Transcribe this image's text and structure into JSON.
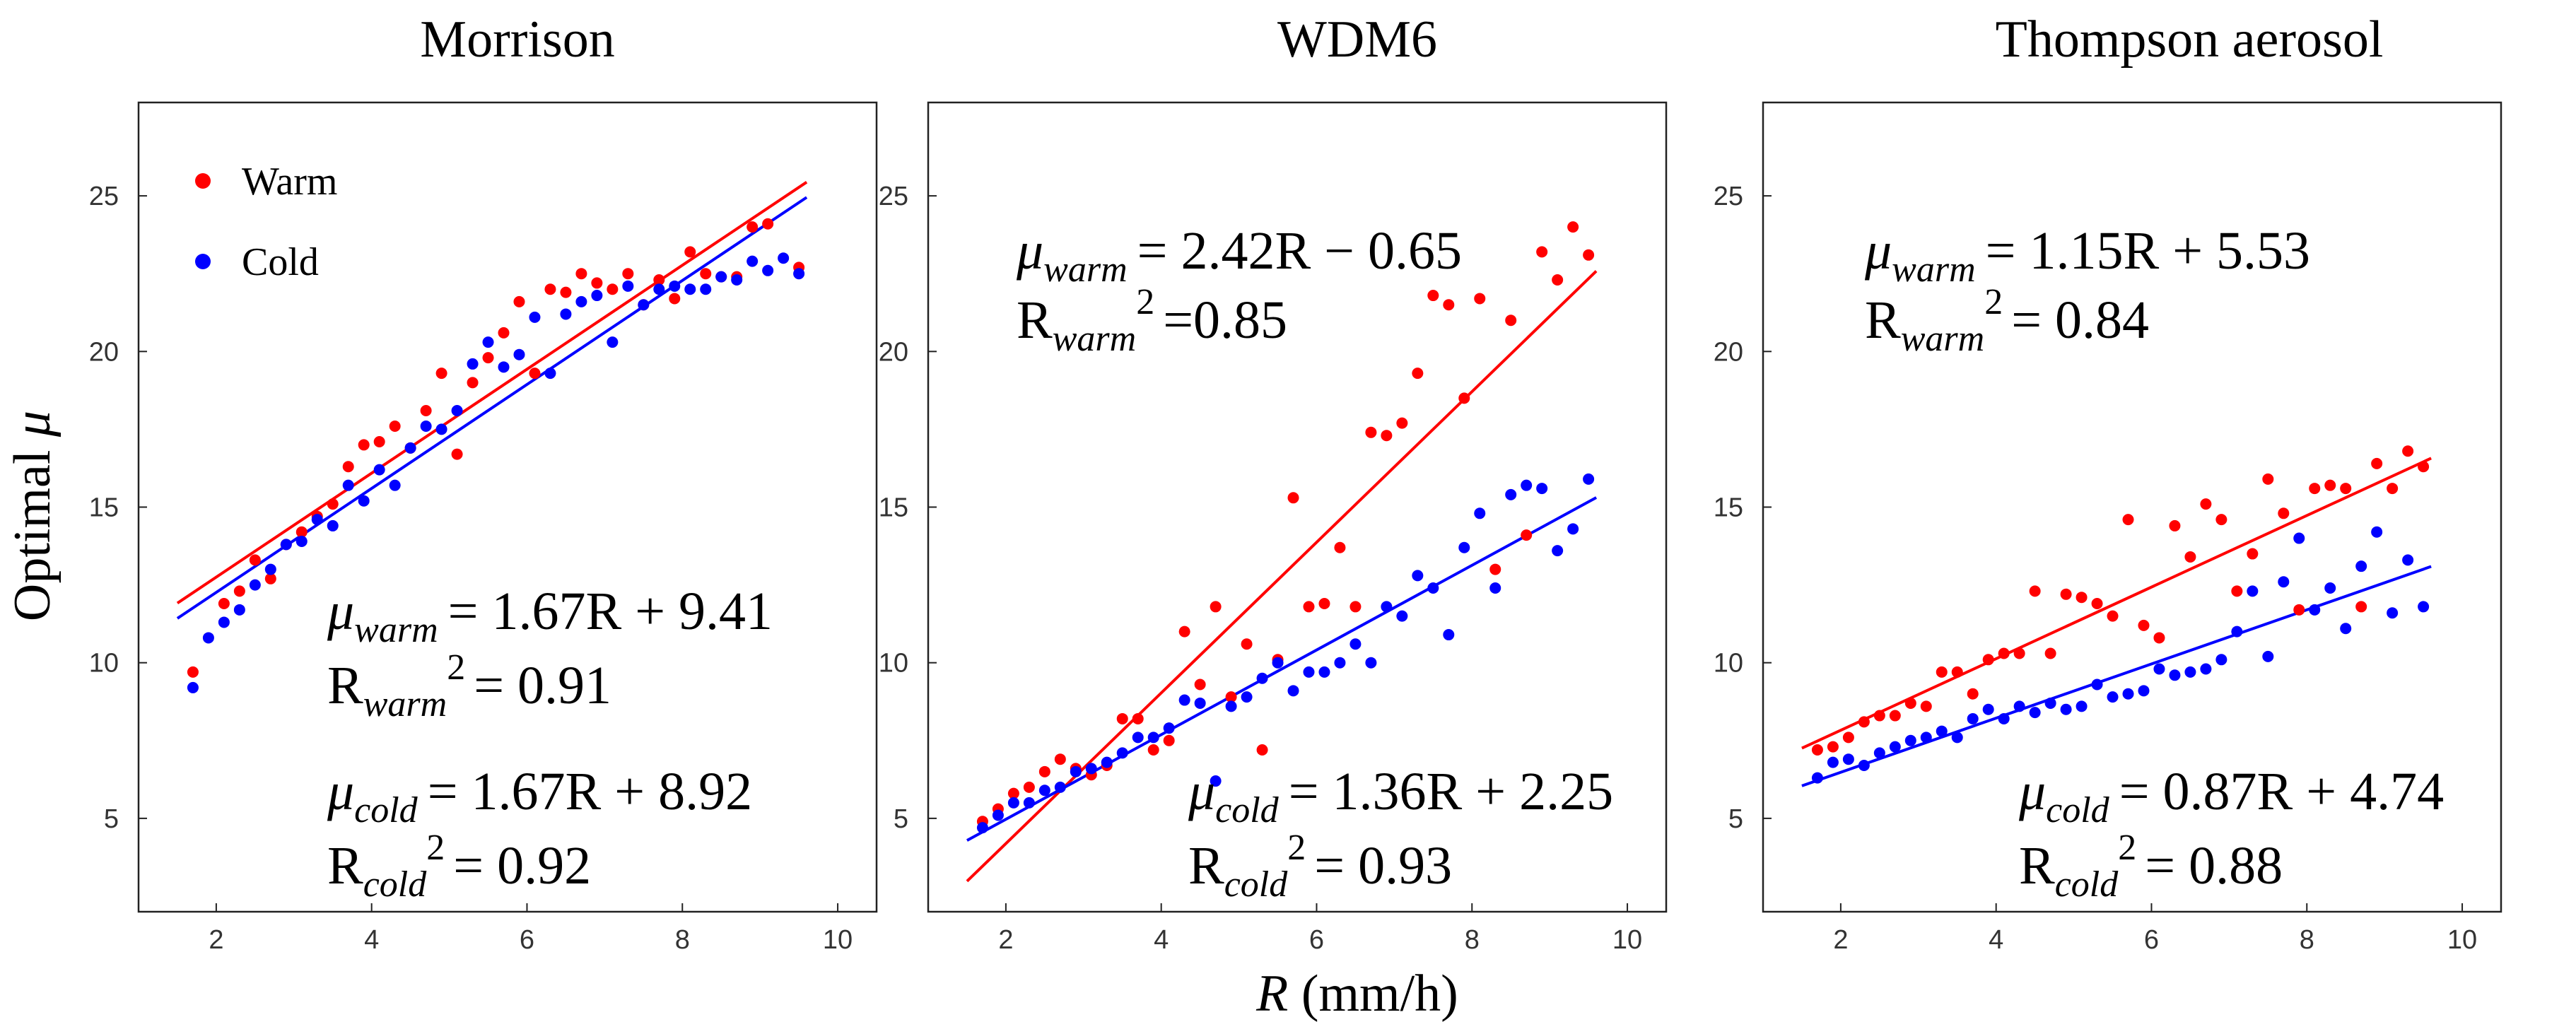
{
  "figure": {
    "ylabel_text": "Optimal",
    "ylabel_symbol": "μ",
    "xlabel_symbol": "R",
    "xlabel_unit": " (mm/h)"
  },
  "colors": {
    "warm": "#ff0000",
    "cold": "#0000ff"
  },
  "chart_data": [
    {
      "type": "scatter",
      "title": "Morrison",
      "xlabel": "R (mm/h)",
      "ylabel": "Optimal μ",
      "xlim": [
        1.0,
        10.5
      ],
      "ylim": [
        2.0,
        28.0
      ],
      "xticks": [
        2,
        4,
        6,
        8,
        10
      ],
      "yticks": [
        5,
        10,
        15,
        20,
        25
      ],
      "legend": {
        "position": "top-left",
        "entries": [
          {
            "label": "Warm",
            "color": "#ff0000"
          },
          {
            "label": "Cold",
            "color": "#0000ff"
          }
        ]
      },
      "series": [
        {
          "name": "Warm",
          "color": "#ff0000",
          "x": [
            1.7,
            2.1,
            2.3,
            2.5,
            2.7,
            2.9,
            3.1,
            3.3,
            3.5,
            3.7,
            3.9,
            4.1,
            4.3,
            4.5,
            4.7,
            4.9,
            5.1,
            5.3,
            5.5,
            5.7,
            5.9,
            6.1,
            6.3,
            6.5,
            6.7,
            6.9,
            7.1,
            7.3,
            7.5,
            7.7,
            7.9,
            8.1,
            8.3,
            8.5,
            8.7,
            8.9,
            9.1,
            9.5
          ],
          "y": [
            9.7,
            11.9,
            12.3,
            13.3,
            12.7,
            13.8,
            14.2,
            14.7,
            15.1,
            16.3,
            17.0,
            17.1,
            17.6,
            16.9,
            18.1,
            19.3,
            16.7,
            19.0,
            19.8,
            20.6,
            21.6,
            19.3,
            22.0,
            21.9,
            22.5,
            22.2,
            22.0,
            22.5,
            21.5,
            22.3,
            21.7,
            23.2,
            22.5,
            22.4,
            22.4,
            24.0,
            24.1,
            22.7
          ],
          "fit": {
            "slope": 1.67,
            "intercept": 9.41,
            "x_range": [
              1.5,
              9.6
            ]
          },
          "equation": {
            "mu": "μ",
            "sub": "warm",
            "rhs": "= 1.67R + 9.41",
            "r": "R",
            "r_sub": "warm",
            "r_sup": "2",
            "r_rhs": "= 0.91"
          }
        },
        {
          "name": "Cold",
          "color": "#0000ff",
          "x": [
            1.7,
            1.9,
            2.1,
            2.3,
            2.5,
            2.7,
            2.9,
            3.1,
            3.3,
            3.5,
            3.7,
            3.9,
            4.1,
            4.3,
            4.5,
            4.7,
            4.9,
            5.1,
            5.3,
            5.5,
            5.7,
            5.9,
            6.1,
            6.3,
            6.5,
            6.7,
            6.9,
            7.1,
            7.3,
            7.5,
            7.7,
            7.9,
            8.1,
            8.3,
            8.5,
            8.7,
            8.9,
            9.1,
            9.3,
            9.5
          ],
          "y": [
            9.2,
            10.8,
            11.3,
            11.7,
            12.5,
            13.0,
            13.8,
            13.9,
            14.6,
            14.4,
            15.7,
            15.2,
            16.2,
            15.7,
            16.9,
            17.6,
            17.5,
            18.1,
            19.6,
            20.3,
            19.5,
            19.9,
            21.1,
            19.3,
            21.2,
            21.6,
            21.8,
            20.3,
            22.1,
            21.5,
            22.0,
            22.1,
            22.0,
            22.0,
            22.4,
            22.3,
            22.9,
            22.6,
            23.0,
            22.5
          ],
          "fit": {
            "slope": 1.67,
            "intercept": 8.92,
            "x_range": [
              1.5,
              9.6
            ]
          },
          "equation": {
            "mu": "μ",
            "sub": "cold",
            "rhs": "= 1.67R + 8.92",
            "r": "R",
            "r_sub": "cold",
            "r_sup": "2",
            "r_rhs": "= 0.92"
          }
        }
      ]
    },
    {
      "type": "scatter",
      "title": "WDM6",
      "xlabel": "R (mm/h)",
      "ylabel": "",
      "xlim": [
        1.0,
        10.5
      ],
      "ylim": [
        2.0,
        28.0
      ],
      "xticks": [
        2,
        4,
        6,
        8,
        10
      ],
      "yticks": [
        5,
        10,
        15,
        20,
        25
      ],
      "series": [
        {
          "name": "Warm",
          "color": "#ff0000",
          "x": [
            1.7,
            1.9,
            2.1,
            2.3,
            2.5,
            2.7,
            2.9,
            3.1,
            3.3,
            3.5,
            3.7,
            3.9,
            4.1,
            4.3,
            4.5,
            4.7,
            4.9,
            5.1,
            5.3,
            5.5,
            5.7,
            5.9,
            6.1,
            6.3,
            6.5,
            6.7,
            6.9,
            7.1,
            7.3,
            7.5,
            7.7,
            7.9,
            8.1,
            8.3,
            8.5,
            8.7,
            8.9,
            9.1,
            9.3,
            9.5
          ],
          "y": [
            4.9,
            5.3,
            5.8,
            6.0,
            6.5,
            6.9,
            6.6,
            6.4,
            6.7,
            8.2,
            8.2,
            7.2,
            7.5,
            11.0,
            9.3,
            11.8,
            8.9,
            10.6,
            7.2,
            10.1,
            15.3,
            11.8,
            11.9,
            13.7,
            11.8,
            17.4,
            17.3,
            17.7,
            19.3,
            21.8,
            21.5,
            18.5,
            21.7,
            13.0,
            21.0,
            14.1,
            23.2,
            22.3,
            24.0,
            23.1
          ],
          "fit": {
            "slope": 2.42,
            "intercept": -0.65,
            "x_range": [
              1.5,
              9.6
            ]
          },
          "equation": {
            "mu": "μ",
            "sub": "warm",
            "rhs": "= 2.42R − 0.65",
            "r": "R",
            "r_sub": "warm",
            "r_sup": "2",
            "r_rhs": "=0.85"
          }
        },
        {
          "name": "Cold",
          "color": "#0000ff",
          "x": [
            1.7,
            1.9,
            2.1,
            2.3,
            2.5,
            2.7,
            2.9,
            3.1,
            3.3,
            3.5,
            3.7,
            3.9,
            4.1,
            4.3,
            4.5,
            4.7,
            4.9,
            5.1,
            5.3,
            5.5,
            5.7,
            5.9,
            6.1,
            6.3,
            6.5,
            6.7,
            6.9,
            7.1,
            7.3,
            7.5,
            7.7,
            7.9,
            8.1,
            8.3,
            8.5,
            8.7,
            8.9,
            9.1,
            9.3,
            9.5
          ],
          "y": [
            4.7,
            5.1,
            5.5,
            5.5,
            5.9,
            6.0,
            6.5,
            6.6,
            6.8,
            7.1,
            7.6,
            7.6,
            7.9,
            8.8,
            8.7,
            6.2,
            8.6,
            8.9,
            9.5,
            10.0,
            9.1,
            9.7,
            9.7,
            10.0,
            10.6,
            10.0,
            11.8,
            11.5,
            12.8,
            12.4,
            10.9,
            13.7,
            14.8,
            12.4,
            15.4,
            15.7,
            15.6,
            13.6,
            14.3,
            15.9
          ],
          "fit": {
            "slope": 1.36,
            "intercept": 2.25,
            "x_range": [
              1.5,
              9.6
            ]
          },
          "equation": {
            "mu": "μ",
            "sub": "cold",
            "rhs": "= 1.36R + 2.25",
            "r": "R",
            "r_sub": "cold",
            "r_sup": "2",
            "r_rhs": "= 0.93"
          }
        }
      ]
    },
    {
      "type": "scatter",
      "title": "Thompson aerosol",
      "xlabel": "R (mm/h)",
      "ylabel": "",
      "xlim": [
        1.0,
        10.5
      ],
      "ylim": [
        2.0,
        28.0
      ],
      "xticks": [
        2,
        4,
        6,
        8,
        10
      ],
      "yticks": [
        5,
        10,
        15,
        20,
        25
      ],
      "series": [
        {
          "name": "Warm",
          "color": "#ff0000",
          "x": [
            1.7,
            1.9,
            2.1,
            2.3,
            2.5,
            2.7,
            2.9,
            3.1,
            3.3,
            3.5,
            3.7,
            3.9,
            4.1,
            4.3,
            4.5,
            4.7,
            4.9,
            5.1,
            5.3,
            5.5,
            5.7,
            5.9,
            6.1,
            6.3,
            6.5,
            6.7,
            6.9,
            7.1,
            7.3,
            7.5,
            7.7,
            7.9,
            8.1,
            8.3,
            8.5,
            8.7,
            8.9,
            9.1,
            9.3,
            9.5
          ],
          "y": [
            7.2,
            7.3,
            7.6,
            8.1,
            8.3,
            8.3,
            8.7,
            8.6,
            9.7,
            9.7,
            9.0,
            10.1,
            10.3,
            10.3,
            12.3,
            10.3,
            12.2,
            12.1,
            11.9,
            11.5,
            14.6,
            11.2,
            10.8,
            14.4,
            13.4,
            15.1,
            14.6,
            12.3,
            13.5,
            15.9,
            14.8,
            11.7,
            15.6,
            15.7,
            15.6,
            11.8,
            16.4,
            15.6,
            16.8,
            16.3
          ],
          "fit": {
            "slope": 1.15,
            "intercept": 5.53,
            "x_range": [
              1.5,
              9.6
            ]
          },
          "equation": {
            "mu": "μ",
            "sub": "warm",
            "rhs": "= 1.15R + 5.53",
            "r": "R",
            "r_sub": "warm",
            "r_sup": "2",
            "r_rhs": "= 0.84"
          }
        },
        {
          "name": "Cold",
          "color": "#0000ff",
          "x": [
            1.7,
            1.9,
            2.1,
            2.3,
            2.5,
            2.7,
            2.9,
            3.1,
            3.3,
            3.5,
            3.7,
            3.9,
            4.1,
            4.3,
            4.5,
            4.7,
            4.9,
            5.1,
            5.3,
            5.5,
            5.7,
            5.9,
            6.1,
            6.3,
            6.5,
            6.7,
            6.9,
            7.1,
            7.3,
            7.5,
            7.7,
            7.9,
            8.1,
            8.3,
            8.5,
            8.7,
            8.9,
            9.1,
            9.3,
            9.5
          ],
          "y": [
            6.3,
            6.8,
            6.9,
            6.7,
            7.1,
            7.3,
            7.5,
            7.6,
            7.8,
            7.6,
            8.2,
            8.5,
            8.2,
            8.6,
            8.4,
            8.7,
            8.5,
            8.6,
            9.3,
            8.9,
            9.0,
            9.1,
            9.8,
            9.6,
            9.7,
            9.8,
            10.1,
            11.0,
            12.3,
            10.2,
            12.6,
            14.0,
            11.7,
            12.4,
            11.1,
            13.1,
            14.2,
            11.6,
            13.3,
            11.8
          ],
          "fit": {
            "slope": 0.87,
            "intercept": 4.74,
            "x_range": [
              1.5,
              9.6
            ]
          },
          "equation": {
            "mu": "μ",
            "sub": "cold",
            "rhs": "= 0.87R + 4.74",
            "r": "R",
            "r_sub": "cold",
            "r_sup": "2",
            "r_rhs": "= 0.88"
          }
        }
      ]
    }
  ]
}
